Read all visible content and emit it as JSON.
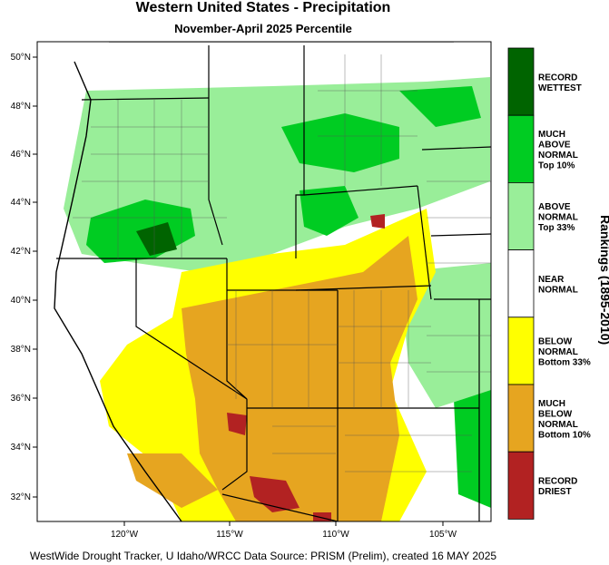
{
  "title": "Western United States - Precipitation",
  "subtitle": "November-April 2025 Percentile",
  "footer": "WestWide Drought Tracker, U Idaho/WRCC Data Source: PRISM (Prelim), created 16 MAY 2025",
  "legend_title": "Rankings (1895-2010)",
  "legend": [
    {
      "lines": [
        "RECORD",
        "WETTEST"
      ],
      "color": "#006400"
    },
    {
      "lines": [
        "MUCH",
        "ABOVE",
        "NORMAL",
        "Top 10%"
      ],
      "color": "#00cc22"
    },
    {
      "lines": [
        "ABOVE",
        "NORMAL",
        "Top 33%"
      ],
      "color": "#99ee99"
    },
    {
      "lines": [
        "NEAR",
        "NORMAL"
      ],
      "color": "#ffffff"
    },
    {
      "lines": [
        "BELOW",
        "NORMAL",
        "Bottom 33%"
      ],
      "color": "#ffff00"
    },
    {
      "lines": [
        "MUCH",
        "BELOW",
        "NORMAL",
        "Bottom 10%"
      ],
      "color": "#e6a520"
    },
    {
      "lines": [
        "RECORD",
        "DRIEST"
      ],
      "color": "#b22222"
    }
  ],
  "lat_labels": [
    "50°N",
    "48°N",
    "46°N",
    "44°N",
    "42°N",
    "40°N",
    "38°N",
    "36°N",
    "34°N",
    "32°N"
  ],
  "lon_labels": [
    "120°W",
    "115°W",
    "110°W",
    "105°W"
  ]
}
